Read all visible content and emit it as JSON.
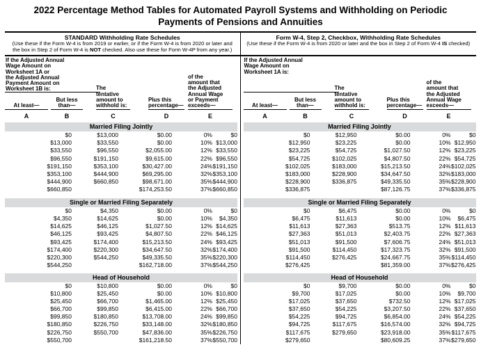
{
  "title": {
    "line1": "2022 Percentage Method Tables for Automated Payroll Systems and Withholding on Periodic",
    "line2": "Payments of Pensions and Annuities"
  },
  "colors": {
    "band_bg": "#d9dadb",
    "text": "#000000"
  },
  "panels": [
    {
      "header": {
        "title": "STANDARD Withholding Rate Schedules",
        "note_pre": "(Use these if the Form W-4 is from 2019 or earlier, or if the Form W-4 is from 2020 or later and the box in Step 2 of Form W-4 is ",
        "note_bold": "NOT",
        "note_post": " checked. Also use these for Form W-4P from any year.)"
      },
      "wage_header": "If the Adjusted Annual\nWage Amount on\nWorksheet 1A or\nthe Adjusted Annual\nPayment Amount on\nWorksheet 1B is:",
      "columns": {
        "a": "At least—",
        "b": "But less\nthan—",
        "c": "The\ntentative\namount to\nwithhold is:",
        "d": "Plus this\npercentage—",
        "e": "of the\namount that\nthe Adjusted\nAnnual Wage\nor Payment\nexceeds—"
      },
      "letters": [
        "A",
        "B",
        "C",
        "D",
        "E"
      ],
      "sections": [
        {
          "label": "Married Filing Jointly",
          "rows": [
            [
              "$0",
              "$13,000",
              "$0.00",
              "0%",
              "$0"
            ],
            [
              "$13,000",
              "$33,550",
              "$0.00",
              "10%",
              "$13,000"
            ],
            [
              "$33,550",
              "$96,550",
              "$2,055.00",
              "12%",
              "$33,550"
            ],
            [
              "$96,550",
              "$191,150",
              "$9,615.00",
              "22%",
              "$96,550"
            ],
            [
              "$191,150",
              "$353,100",
              "$30,427.00",
              "24%",
              "$191,150"
            ],
            [
              "$353,100",
              "$444,900",
              "$69,295.00",
              "32%",
              "$353,100"
            ],
            [
              "$444,900",
              "$660,850",
              "$98,671.00",
              "35%",
              "$444,900"
            ],
            [
              "$660,850",
              "",
              "$174,253.50",
              "37%",
              "$660,850"
            ]
          ]
        },
        {
          "label": "Single or Married Filing Separately",
          "rows": [
            [
              "$0",
              "$4,350",
              "$0.00",
              "0%",
              "$0"
            ],
            [
              "$4,350",
              "$14,625",
              "$0.00",
              "10%",
              "$4,350"
            ],
            [
              "$14,625",
              "$46,125",
              "$1,027.50",
              "12%",
              "$14,625"
            ],
            [
              "$46,125",
              "$93,425",
              "$4,807.50",
              "22%",
              "$46,125"
            ],
            [
              "$93,425",
              "$174,400",
              "$15,213.50",
              "24%",
              "$93,425"
            ],
            [
              "$174,400",
              "$220,300",
              "$34,647.50",
              "32%",
              "$174,400"
            ],
            [
              "$220,300",
              "$544,250",
              "$49,335.50",
              "35%",
              "$220,300"
            ],
            [
              "$544,250",
              "",
              "$162,718.00",
              "37%",
              "$544,250"
            ]
          ]
        },
        {
          "label": "Head of Household",
          "rows": [
            [
              "$0",
              "$10,800",
              "$0.00",
              "0%",
              "$0"
            ],
            [
              "$10,800",
              "$25,450",
              "$0.00",
              "10%",
              "$10,800"
            ],
            [
              "$25,450",
              "$66,700",
              "$1,465.00",
              "12%",
              "$25,450"
            ],
            [
              "$66,700",
              "$99,850",
              "$6,415.00",
              "22%",
              "$66,700"
            ],
            [
              "$99,850",
              "$180,850",
              "$13,708.00",
              "24%",
              "$99,850"
            ],
            [
              "$180,850",
              "$226,750",
              "$33,148.00",
              "32%",
              "$180,850"
            ],
            [
              "$226,750",
              "$550,700",
              "$47,836.00",
              "35%",
              "$226,750"
            ],
            [
              "$550,700",
              "",
              "$161,218.50",
              "37%",
              "$550,700"
            ]
          ]
        }
      ]
    },
    {
      "header": {
        "title": "Form W-4, Step 2, Checkbox, Withholding Rate Schedules",
        "note_pre": "(Use these if the Form W-4 is from 2020 or later and the box in Step 2 of Form W-4 ",
        "note_bold": "IS",
        "note_post": " checked)"
      },
      "wage_header": "If the Adjusted Annual\nWage Amount on\nWorksheet 1A is:",
      "columns": {
        "a": "At least—",
        "b": "But less\nthan—",
        "c": "The\ntentative\namount to\nwithhold is:",
        "d": "Plus this\npercentage—",
        "e": "of the\namount that\nthe Adjusted\nAnnual Wage\nexceeds—"
      },
      "letters": [
        "A",
        "B",
        "C",
        "D",
        "E"
      ],
      "sections": [
        {
          "label": "Married Filing Jointly",
          "rows": [
            [
              "$0",
              "$12,950",
              "$0.00",
              "0%",
              "$0"
            ],
            [
              "$12,950",
              "$23,225",
              "$0.00",
              "10%",
              "$12,950"
            ],
            [
              "$23,225",
              "$54,725",
              "$1,027.50",
              "12%",
              "$23,225"
            ],
            [
              "$54,725",
              "$102,025",
              "$4,807.50",
              "22%",
              "$54,725"
            ],
            [
              "$102,025",
              "$183,000",
              "$15,213.50",
              "24%",
              "$102,025"
            ],
            [
              "$183,000",
              "$228,900",
              "$34,647.50",
              "32%",
              "$183,000"
            ],
            [
              "$228,900",
              "$336,875",
              "$49,335.50",
              "35%",
              "$228,900"
            ],
            [
              "$336,875",
              "",
              "$87,126.75",
              "37%",
              "$336,875"
            ]
          ]
        },
        {
          "label": "Single or Married Filing Separately",
          "rows": [
            [
              "$0",
              "$6,475",
              "$0.00",
              "0%",
              "$0"
            ],
            [
              "$6,475",
              "$11,613",
              "$0.00",
              "10%",
              "$6,475"
            ],
            [
              "$11,613",
              "$27,363",
              "$513.75",
              "12%",
              "$11,613"
            ],
            [
              "$27,363",
              "$51,013",
              "$2,403.75",
              "22%",
              "$27,363"
            ],
            [
              "$51,013",
              "$91,500",
              "$7,606.75",
              "24%",
              "$51,013"
            ],
            [
              "$91,500",
              "$114,450",
              "$17,323.75",
              "32%",
              "$91,500"
            ],
            [
              "$114,450",
              "$276,425",
              "$24,667.75",
              "35%",
              "$114,450"
            ],
            [
              "$276,425",
              "",
              "$81,359.00",
              "37%",
              "$276,425"
            ]
          ]
        },
        {
          "label": "Head of Household",
          "rows": [
            [
              "$0",
              "$9,700",
              "$0.00",
              "0%",
              "$0"
            ],
            [
              "$9,700",
              "$17,025",
              "$0.00",
              "10%",
              "$9,700"
            ],
            [
              "$17,025",
              "$37,650",
              "$732.50",
              "12%",
              "$17,025"
            ],
            [
              "$37,650",
              "$54,225",
              "$3,207.50",
              "22%",
              "$37,650"
            ],
            [
              "$54,225",
              "$94,725",
              "$6,854.00",
              "24%",
              "$54,225"
            ],
            [
              "$94,725",
              "$117,675",
              "$16,574.00",
              "32%",
              "$94,725"
            ],
            [
              "$117,675",
              "$279,650",
              "$23,918.00",
              "35%",
              "$117,675"
            ],
            [
              "$279,650",
              "",
              "$80,609.25",
              "37%",
              "$279,650"
            ]
          ]
        }
      ]
    }
  ]
}
